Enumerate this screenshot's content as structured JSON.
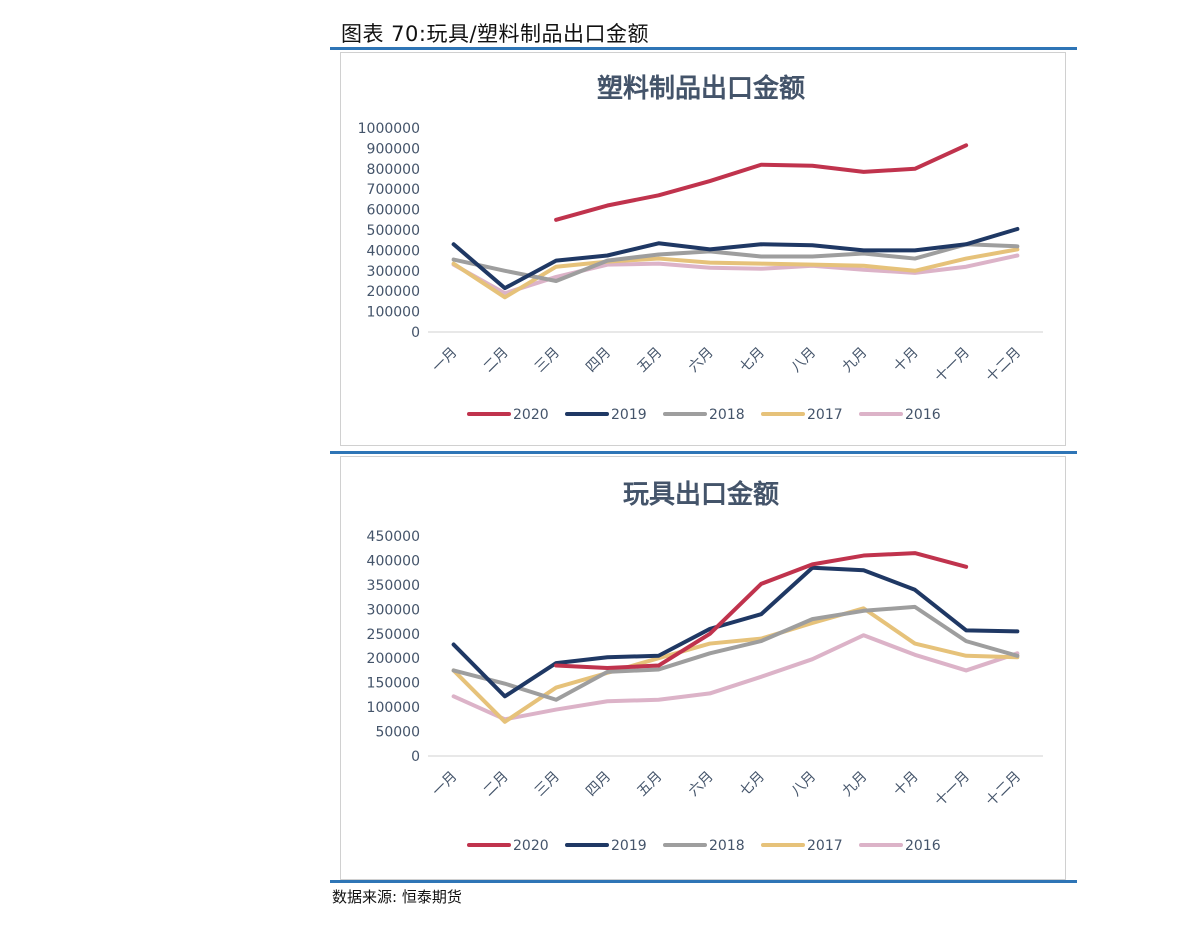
{
  "figure": {
    "title": "图表 70:玩具/塑料制品出口金额",
    "source": "数据来源: 恒泰期货"
  },
  "colors": {
    "2020": "#c0334d",
    "2019": "#1f3864",
    "2018": "#9e9e9e",
    "2017": "#e6c27a",
    "2016": "#dcb3c8",
    "rule": "#2e75b6",
    "title_text": "#44546a",
    "axis_text": "#44546a"
  },
  "chart_data": [
    {
      "type": "line",
      "title": "塑料制品出口金额",
      "categories": [
        "一月",
        "二月",
        "三月",
        "四月",
        "五月",
        "六月",
        "七月",
        "八月",
        "九月",
        "十月",
        "十一月",
        "十二月"
      ],
      "yticks": [
        "1000000",
        "900000",
        "800000",
        "700000",
        "600000",
        "500000",
        "400000",
        "300000",
        "200000",
        "100000",
        "0"
      ],
      "ylim": [
        0,
        1000000
      ],
      "grid": false,
      "legend": "bottom",
      "series": [
        {
          "name": "2020",
          "values": [
            null,
            null,
            550000,
            620000,
            670000,
            740000,
            820000,
            815000,
            785000,
            800000,
            915000,
            null
          ]
        },
        {
          "name": "2019",
          "values": [
            430000,
            215000,
            350000,
            375000,
            435000,
            405000,
            430000,
            425000,
            400000,
            400000,
            430000,
            505000
          ]
        },
        {
          "name": "2018",
          "values": [
            355000,
            300000,
            250000,
            350000,
            380000,
            395000,
            370000,
            370000,
            385000,
            360000,
            430000,
            420000
          ]
        },
        {
          "name": "2017",
          "values": [
            335000,
            170000,
            320000,
            345000,
            360000,
            340000,
            335000,
            330000,
            325000,
            300000,
            360000,
            405000
          ]
        },
        {
          "name": "2016",
          "values": [
            330000,
            190000,
            270000,
            330000,
            335000,
            315000,
            310000,
            325000,
            305000,
            290000,
            320000,
            375000
          ]
        }
      ]
    },
    {
      "type": "line",
      "title": "玩具出口金额",
      "categories": [
        "一月",
        "二月",
        "三月",
        "四月",
        "五月",
        "六月",
        "七月",
        "八月",
        "九月",
        "十月",
        "十一月",
        "十二月"
      ],
      "yticks": [
        "450000",
        "400000",
        "350000",
        "300000",
        "250000",
        "200000",
        "150000",
        "100000",
        "50000",
        "0"
      ],
      "ylim": [
        0,
        450000
      ],
      "grid": false,
      "legend": "bottom",
      "series": [
        {
          "name": "2020",
          "values": [
            null,
            null,
            185000,
            180000,
            185000,
            250000,
            352000,
            392000,
            410000,
            415000,
            387000,
            null
          ]
        },
        {
          "name": "2019",
          "values": [
            228000,
            122000,
            190000,
            202000,
            205000,
            260000,
            290000,
            385000,
            380000,
            340000,
            257000,
            255000
          ]
        },
        {
          "name": "2018",
          "values": [
            175000,
            148000,
            115000,
            172000,
            177000,
            210000,
            235000,
            280000,
            297000,
            305000,
            235000,
            205000
          ]
        },
        {
          "name": "2017",
          "values": [
            175000,
            70000,
            140000,
            170000,
            200000,
            230000,
            240000,
            272000,
            302000,
            230000,
            205000,
            202000
          ]
        },
        {
          "name": "2016",
          "values": [
            122000,
            75000,
            95000,
            112000,
            115000,
            128000,
            162000,
            198000,
            247000,
            207000,
            175000,
            210000
          ]
        }
      ]
    }
  ]
}
